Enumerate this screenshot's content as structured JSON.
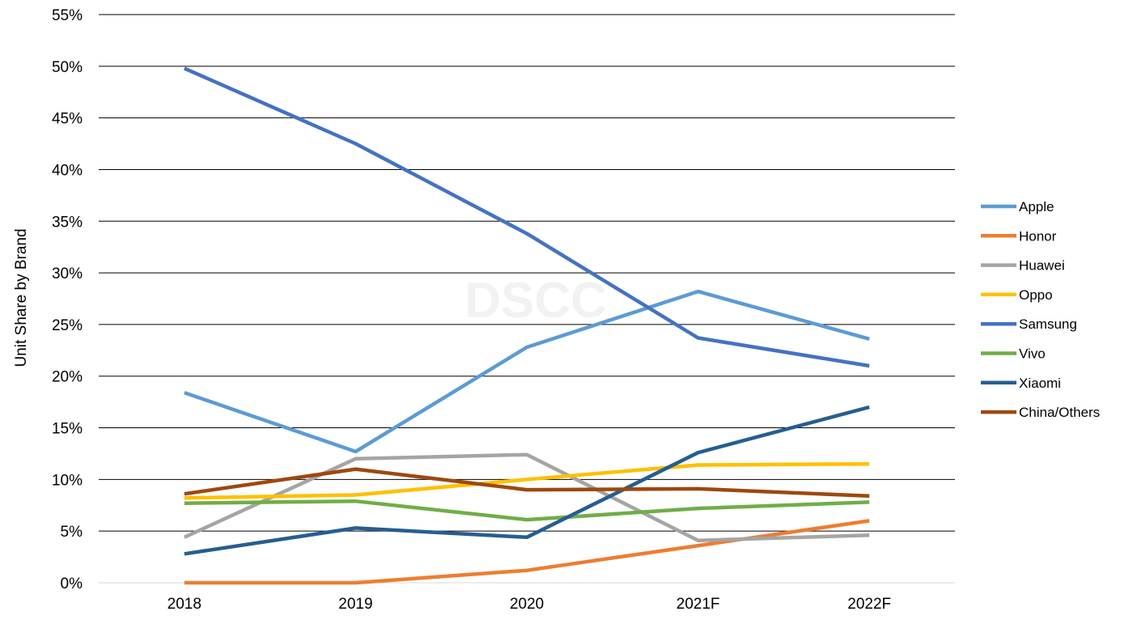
{
  "watermark": "DSCC",
  "chart_data": {
    "type": "line",
    "ylabel": "Unit Share by Brand",
    "ylim": [
      0,
      55
    ],
    "y_unit": "%",
    "y_ticks": [
      "0%",
      "5%",
      "10%",
      "15%",
      "20%",
      "25%",
      "30%",
      "35%",
      "40%",
      "45%",
      "50%",
      "55%"
    ],
    "categories": [
      "2018",
      "2019",
      "2020",
      "2021F",
      "2022F"
    ],
    "grid": "horizontal",
    "legend_position": "right",
    "series": [
      {
        "name": "Apple",
        "color": "#5B9BD5",
        "values": [
          18.4,
          12.7,
          22.8,
          28.2,
          23.6
        ]
      },
      {
        "name": "Honor",
        "color": "#ED7D31",
        "values": [
          0.0,
          0.0,
          1.2,
          3.6,
          6.0
        ]
      },
      {
        "name": "Huawei",
        "color": "#A5A5A5",
        "values": [
          4.4,
          12.0,
          12.4,
          4.1,
          4.6
        ]
      },
      {
        "name": "Oppo",
        "color": "#FFC000",
        "values": [
          8.2,
          8.5,
          10.0,
          11.4,
          11.5
        ]
      },
      {
        "name": "Samsung",
        "color": "#4472C4",
        "values": [
          49.8,
          42.5,
          33.8,
          23.7,
          21.0
        ]
      },
      {
        "name": "Vivo",
        "color": "#70AD47",
        "values": [
          7.7,
          7.9,
          6.1,
          7.2,
          7.8
        ]
      },
      {
        "name": "Xiaomi",
        "color": "#255E91",
        "values": [
          2.8,
          5.3,
          4.4,
          12.6,
          17.0
        ]
      },
      {
        "name": "China/Others",
        "color": "#9E480E",
        "values": [
          8.6,
          11.0,
          9.0,
          9.1,
          8.4
        ]
      }
    ]
  }
}
